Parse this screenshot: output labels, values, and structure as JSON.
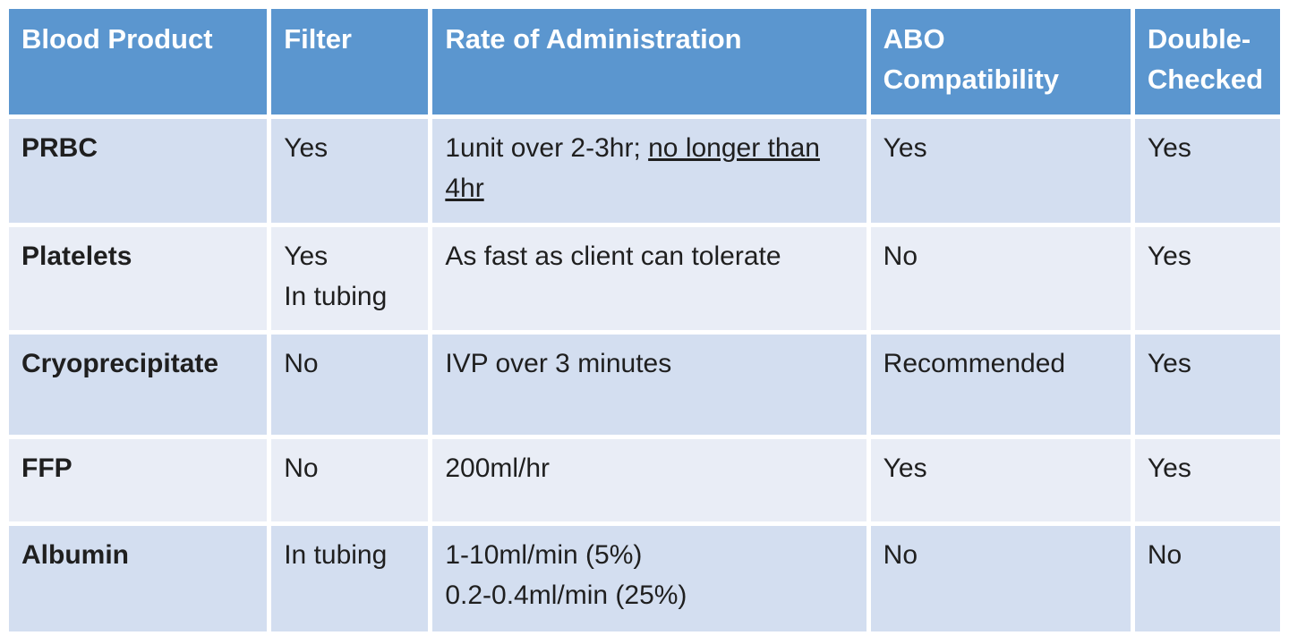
{
  "table": {
    "header": {
      "columns": [
        "Blood Product",
        "Filter",
        "Rate of Administration",
        "ABO Compatibility",
        "Double-Checked"
      ]
    },
    "rows": [
      {
        "blood_product": "PRBC",
        "filter": "Yes",
        "rate_plain": "1unit over 2-3hr; ",
        "rate_underlined": "no longer than 4hr",
        "abo_compatibility": "Yes",
        "double_checked": "Yes"
      },
      {
        "blood_product": "Platelets",
        "filter": "Yes\nIn tubing",
        "rate_plain": "As fast as client can tolerate",
        "rate_underlined": "",
        "abo_compatibility": "No",
        "double_checked": "Yes"
      },
      {
        "blood_product": "Cryoprecipitate",
        "filter": "No",
        "rate_plain": "IVP over 3 minutes",
        "rate_underlined": "",
        "abo_compatibility": "Recommended",
        "double_checked": "Yes"
      },
      {
        "blood_product": "FFP",
        "filter": "No",
        "rate_plain": "200ml/hr",
        "rate_underlined": "",
        "abo_compatibility": "Yes",
        "double_checked": "Yes"
      },
      {
        "blood_product": "Albumin",
        "filter": "In tubing",
        "rate_plain": "1-10ml/min (5%)\n0.2-0.4ml/min (25%)",
        "rate_underlined": "",
        "abo_compatibility": "No",
        "double_checked": "No"
      }
    ]
  },
  "colors": {
    "header_bg": "#5b96cf",
    "header_text": "#ffffff",
    "row_odd_bg": "#d3def0",
    "row_even_bg": "#e9edf6",
    "body_text": "#1f1f1f",
    "grid_line": "#ffffff",
    "page_bg": "#ffffff"
  }
}
